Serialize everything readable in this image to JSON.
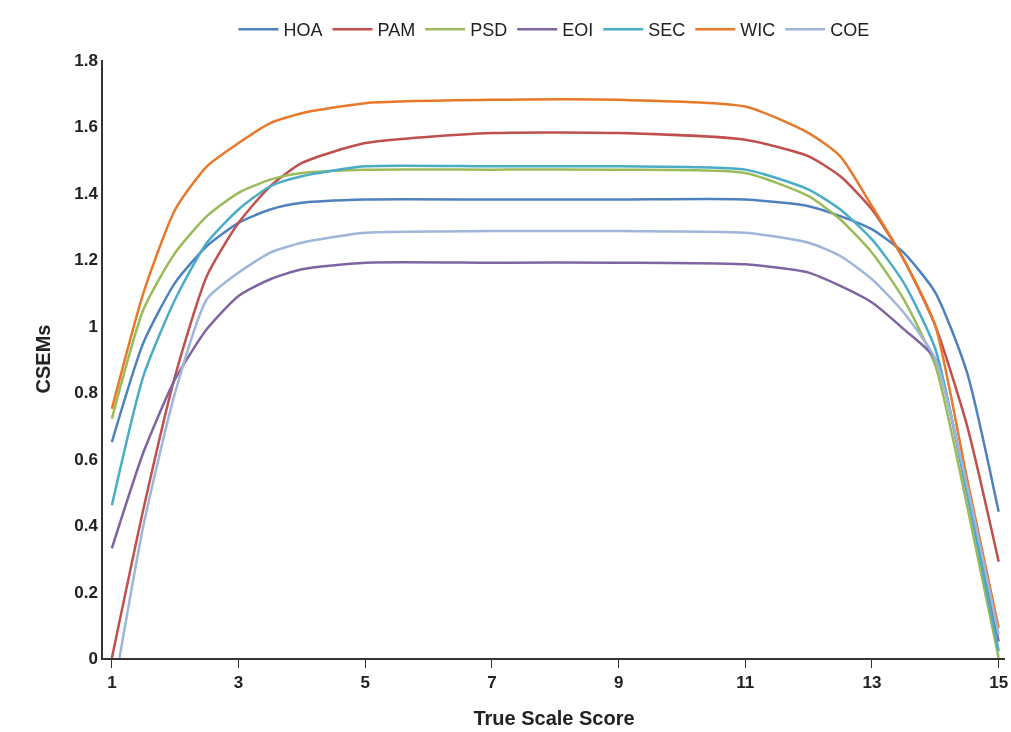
{
  "chart_data": {
    "type": "line",
    "xlabel": "True Scale Score",
    "ylabel": "CSEMs",
    "xlim": [
      0.86,
      15.1
    ],
    "xticks": [
      1,
      3,
      5,
      7,
      9,
      11,
      13,
      15
    ],
    "ylim": [
      0,
      1.8
    ],
    "yticks": [
      0,
      0.2,
      0.4,
      0.6,
      0.8,
      1,
      1.2,
      1.4,
      1.6,
      1.8
    ],
    "grid": false,
    "legend": "top",
    "marker": "none",
    "line_style": "solid",
    "x": [
      1,
      1.5,
      2,
      2.5,
      3,
      3.5,
      4,
      5,
      7,
      9,
      11,
      12,
      12.5,
      13,
      13.5,
      14,
      14.5,
      15
    ],
    "series": [
      {
        "name": "HOA",
        "color": "#4f81bd",
        "values": [
          0.65,
          0.95,
          1.13,
          1.24,
          1.31,
          1.35,
          1.37,
          1.38,
          1.38,
          1.38,
          1.38,
          1.36,
          1.33,
          1.29,
          1.22,
          1.1,
          0.86,
          0.44
        ]
      },
      {
        "name": "PAM",
        "color": "#c0504d",
        "values": [
          0,
          0.45,
          0.85,
          1.15,
          1.31,
          1.42,
          1.49,
          1.55,
          1.58,
          1.58,
          1.56,
          1.51,
          1.45,
          1.35,
          1.2,
          1.0,
          0.7,
          0.29
        ]
      },
      {
        "name": "PSD",
        "color": "#9bbb59",
        "values": [
          0.72,
          1.05,
          1.22,
          1.33,
          1.4,
          1.44,
          1.46,
          1.47,
          1.47,
          1.47,
          1.46,
          1.39,
          1.32,
          1.22,
          1.08,
          0.88,
          0.46,
          0
        ]
      },
      {
        "name": "EOI",
        "color": "#8064a2",
        "values": [
          0.33,
          0.62,
          0.84,
          0.99,
          1.09,
          1.14,
          1.17,
          1.19,
          1.19,
          1.19,
          1.185,
          1.16,
          1.12,
          1.07,
          0.99,
          0.9,
          0.5,
          0.05
        ]
      },
      {
        "name": "SEC",
        "color": "#4bacc6",
        "values": [
          0.46,
          0.85,
          1.08,
          1.25,
          1.35,
          1.42,
          1.45,
          1.48,
          1.48,
          1.48,
          1.47,
          1.41,
          1.35,
          1.26,
          1.13,
          0.93,
          0.5,
          0.02
        ]
      },
      {
        "name": "WIC",
        "color": "#e8782a",
        "values": [
          0.75,
          1.1,
          1.35,
          1.48,
          1.55,
          1.61,
          1.64,
          1.67,
          1.68,
          1.68,
          1.66,
          1.58,
          1.51,
          1.36,
          1.2,
          1.0,
          0.54,
          0.09
        ]
      },
      {
        "name": "COE",
        "color": "#9fb5d9",
        "x": [
          1.12,
          1.5,
          2,
          2.5,
          3,
          3.5,
          4,
          5,
          7,
          9,
          11,
          12,
          12.5,
          13,
          13.5,
          14,
          14.5,
          15
        ],
        "values": [
          0,
          0.4,
          0.8,
          1.08,
          1.16,
          1.22,
          1.25,
          1.28,
          1.285,
          1.285,
          1.28,
          1.25,
          1.21,
          1.14,
          1.04,
          0.9,
          0.52,
          0.07
        ]
      }
    ]
  }
}
